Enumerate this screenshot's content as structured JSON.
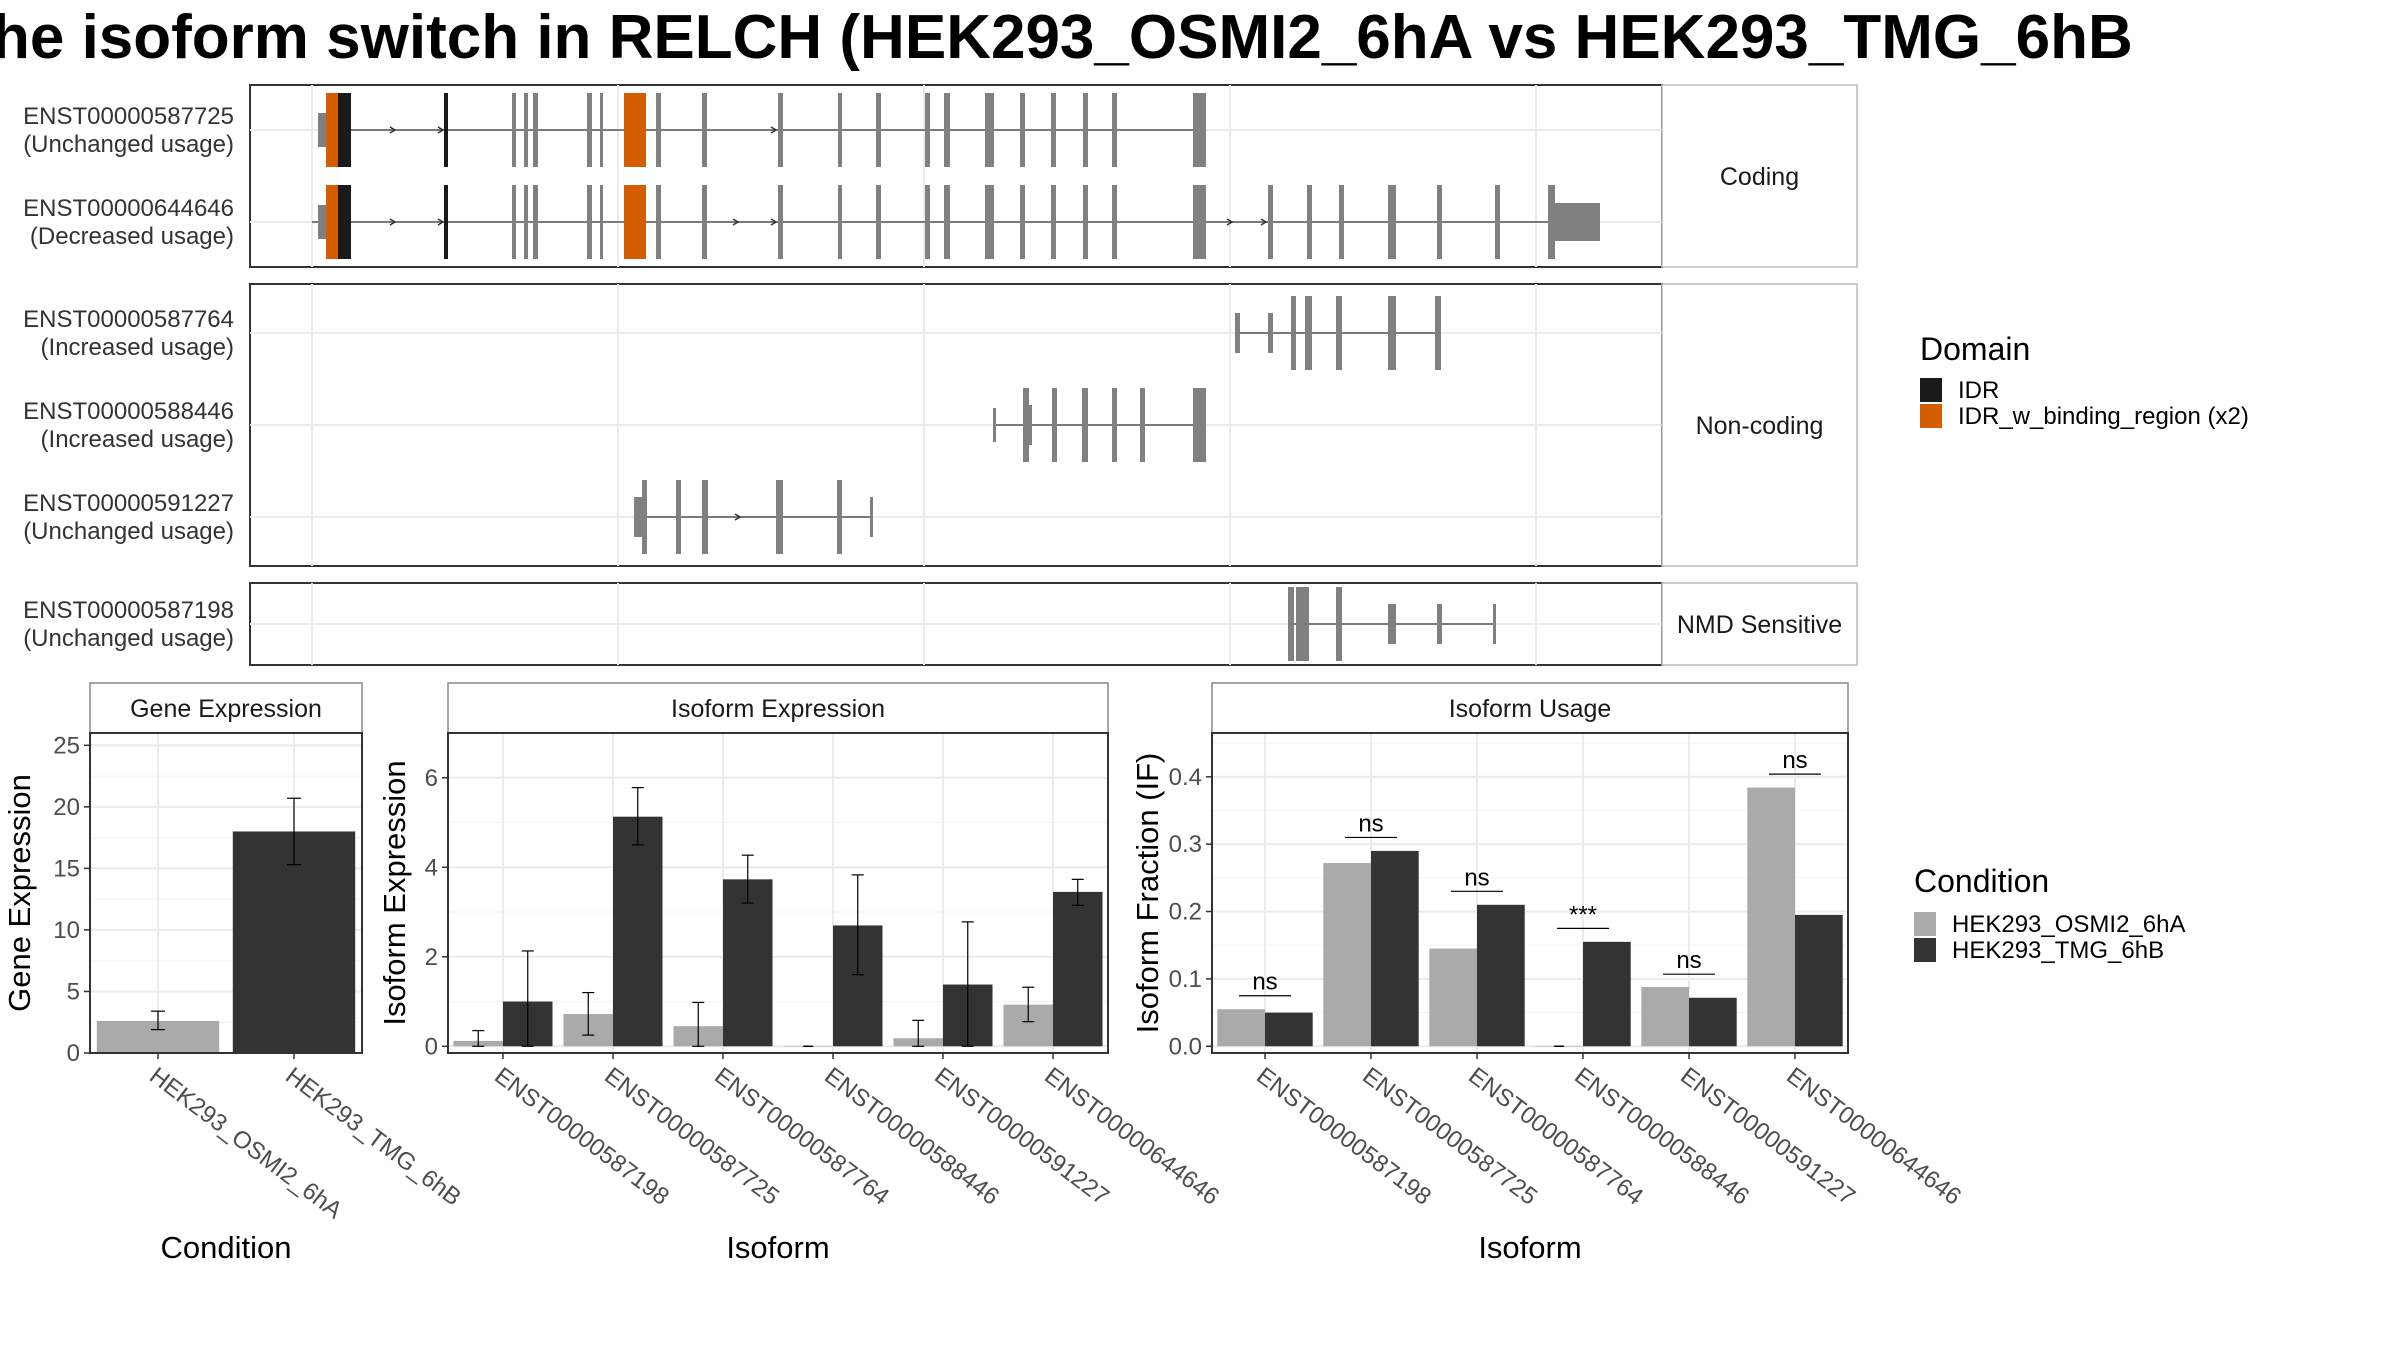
{
  "title": "he isoform switch in RELCH (HEK293_OSMI2_6hA vs HEK293_TMG_6hB",
  "colors": {
    "idr": "#1a1a1a",
    "idr_binding": "#d55e00",
    "exon": "#808080",
    "cond_a": "#aaaaaa",
    "cond_b": "#333333",
    "grid": "#ebebeb"
  },
  "structure_panels": [
    {
      "category": "Coding",
      "transcripts": [
        {
          "id": "ENST00000587725",
          "usage": "(Unchanged usage)"
        },
        {
          "id": "ENST00000644646",
          "usage": "(Decreased usage)"
        }
      ]
    },
    {
      "category": "Non-coding",
      "transcripts": [
        {
          "id": "ENST00000587764",
          "usage": "(Increased usage)"
        },
        {
          "id": "ENST00000588446",
          "usage": "(Increased usage)"
        },
        {
          "id": "ENST00000591227",
          "usage": "(Unchanged usage)"
        }
      ]
    },
    {
      "category": "NMD Sensitive",
      "transcripts": [
        {
          "id": "ENST00000587198",
          "usage": "(Unchanged usage)"
        }
      ]
    }
  ],
  "legend_domain": {
    "title": "Domain",
    "items": [
      {
        "label": "IDR",
        "color_key": "idr"
      },
      {
        "label": "IDR_w_binding_region (x2)",
        "color_key": "idr_binding"
      }
    ]
  },
  "legend_condition": {
    "title": "Condition",
    "items": [
      {
        "label": "HEK293_OSMI2_6hA",
        "color_key": "cond_a"
      },
      {
        "label": "HEK293_TMG_6hB",
        "color_key": "cond_b"
      }
    ]
  },
  "chart_data": [
    {
      "type": "bar",
      "title": "Gene Expression",
      "xlabel": "Condition",
      "ylabel": "Gene Expression",
      "ylim": [
        0,
        26
      ],
      "yticks": [
        0,
        5,
        10,
        15,
        20,
        25
      ],
      "categories": [
        "HEK293_OSMI2_6hA",
        "HEK293_TMG_6hB"
      ],
      "values": [
        2.6,
        18.0
      ],
      "errors": [
        [
          1.9,
          3.4
        ],
        [
          15.3,
          20.7
        ]
      ]
    },
    {
      "type": "bar",
      "title": "Isoform Expression",
      "xlabel": "Isoform",
      "ylabel": "Isoform Expression",
      "ylim": [
        -0.15,
        7.0
      ],
      "yticks": [
        0,
        2,
        4,
        6
      ],
      "categories": [
        "ENST00000587198",
        "ENST00000587725",
        "ENST00000587764",
        "ENST00000588446",
        "ENST00000591227",
        "ENST00000644646"
      ],
      "series": [
        {
          "name": "HEK293_OSMI2_6hA",
          "values": [
            0.12,
            0.72,
            0.45,
            0.0,
            0.18,
            0.93
          ],
          "errors": [
            [
              0.0,
              0.35
            ],
            [
              0.25,
              1.2
            ],
            [
              0.0,
              0.98
            ],
            [
              0.0,
              0.0
            ],
            [
              0.0,
              0.58
            ],
            [
              0.55,
              1.32
            ]
          ]
        },
        {
          "name": "HEK293_TMG_6hB",
          "values": [
            1.0,
            5.13,
            3.73,
            2.7,
            1.38,
            3.45
          ],
          "errors": [
            [
              0.0,
              2.13
            ],
            [
              4.5,
              5.78
            ],
            [
              3.2,
              4.27
            ],
            [
              1.6,
              3.83
            ],
            [
              0.0,
              2.78
            ],
            [
              3.15,
              3.73
            ]
          ]
        }
      ]
    },
    {
      "type": "bar",
      "title": "Isoform Usage",
      "xlabel": "Isoform",
      "ylabel": "Isoform Fraction (IF)",
      "ylim": [
        -0.01,
        0.465
      ],
      "yticks": [
        0.0,
        0.1,
        0.2,
        0.3,
        0.4
      ],
      "ytick_labels": [
        "0.0",
        "0.1",
        "0.2",
        "0.3",
        "0.4"
      ],
      "categories": [
        "ENST00000587198",
        "ENST00000587725",
        "ENST00000587764",
        "ENST00000588446",
        "ENST00000591227",
        "ENST00000644646"
      ],
      "series": [
        {
          "name": "HEK293_OSMI2_6hA",
          "values": [
            0.055,
            0.272,
            0.145,
            0.0,
            0.088,
            0.384
          ]
        },
        {
          "name": "HEK293_TMG_6hB",
          "values": [
            0.05,
            0.29,
            0.21,
            0.155,
            0.072,
            0.195
          ]
        }
      ],
      "significance": [
        "ns",
        "ns",
        "ns",
        "***",
        "ns",
        "ns"
      ],
      "significance_y": [
        0.075,
        0.31,
        0.23,
        0.175,
        0.107,
        0.404
      ]
    }
  ]
}
